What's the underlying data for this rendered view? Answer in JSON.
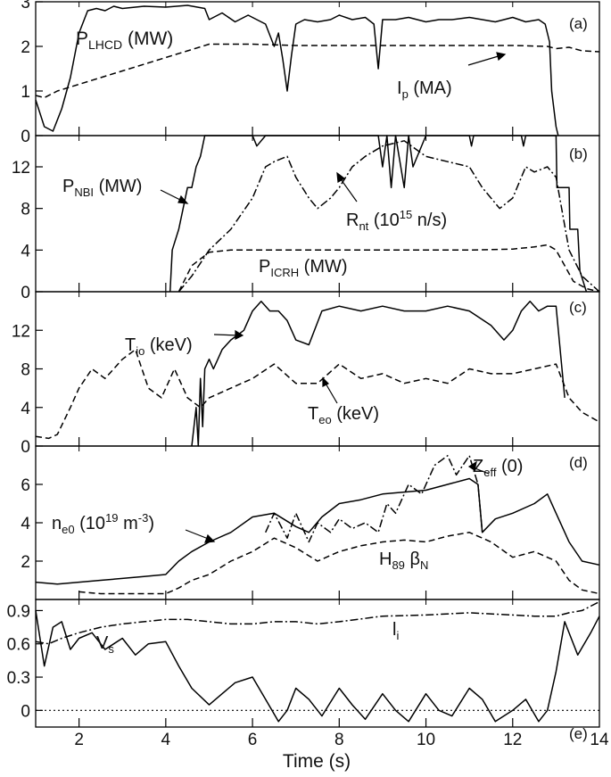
{
  "figure": {
    "xlabel": "Time (s)",
    "x_ticks": [
      "2",
      "4",
      "6",
      "8",
      "10",
      "12",
      "14"
    ]
  },
  "chart_data": [
    {
      "panel": "(a)",
      "type": "line",
      "xlim": [
        1,
        14
      ],
      "ylim": [
        0,
        3
      ],
      "yticks": [
        "0",
        "1",
        "2",
        "3"
      ],
      "series": [
        {
          "label_main": "P",
          "label_sub": "LHCD",
          "label_rest": " (MW)",
          "style": "solid",
          "x": [
            1.0,
            1.2,
            1.4,
            1.6,
            1.8,
            2.0,
            2.2,
            2.4,
            2.6,
            2.8,
            3.0,
            3.5,
            4.0,
            4.5,
            4.9,
            5.0,
            5.3,
            5.6,
            5.9,
            6.1,
            6.3,
            6.5,
            6.6,
            6.7,
            6.8,
            6.9,
            7.0,
            7.2,
            7.5,
            7.8,
            8.0,
            8.3,
            8.6,
            8.8,
            8.9,
            9.0,
            9.1,
            9.3,
            9.6,
            10.0,
            10.3,
            10.6,
            11.0,
            11.3,
            11.6,
            12.0,
            12.3,
            12.6,
            12.75,
            12.85,
            12.9,
            13.0,
            13.05
          ],
          "y": [
            0.8,
            0.2,
            0.1,
            0.6,
            1.3,
            2.3,
            2.8,
            2.85,
            2.8,
            2.9,
            2.85,
            2.9,
            2.88,
            2.92,
            2.85,
            2.6,
            2.75,
            2.55,
            2.7,
            2.6,
            2.5,
            2.0,
            2.3,
            1.7,
            1.0,
            1.8,
            2.5,
            2.6,
            2.55,
            2.6,
            2.7,
            2.6,
            2.65,
            2.5,
            1.5,
            2.6,
            2.6,
            2.6,
            2.65,
            2.55,
            2.6,
            2.6,
            2.65,
            2.6,
            2.55,
            2.65,
            2.55,
            2.6,
            2.5,
            2.1,
            1.0,
            0.2,
            0.0
          ]
        },
        {
          "label_main": "I",
          "label_sub": "p",
          "label_rest": " (MA)",
          "style": "dashed",
          "x": [
            1.0,
            1.2,
            1.5,
            2.0,
            2.5,
            3.0,
            3.5,
            4.0,
            4.5,
            5.0,
            5.5,
            6.0,
            7.0,
            8.0,
            9.0,
            10.0,
            11.0,
            12.0,
            12.8,
            13.0,
            13.3,
            13.6,
            14.0
          ],
          "y": [
            0.9,
            0.85,
            1.0,
            1.15,
            1.3,
            1.45,
            1.6,
            1.75,
            1.9,
            2.05,
            2.05,
            2.05,
            2.02,
            2.02,
            2.02,
            2.02,
            2.02,
            2.02,
            2.0,
            1.95,
            1.98,
            1.9,
            1.88
          ]
        }
      ]
    },
    {
      "panel": "(b)",
      "type": "line",
      "xlim": [
        1,
        14
      ],
      "ylim": [
        0,
        15
      ],
      "yticks": [
        "0",
        "4",
        "8",
        "12"
      ],
      "series": [
        {
          "label_main": "P",
          "label_sub": "NBI",
          "label_rest": " (MW)",
          "style": "solid",
          "x": [
            4.1,
            4.15,
            4.3,
            4.4,
            4.5,
            4.6,
            4.7,
            4.8,
            4.9,
            5.0,
            5.5,
            6.0,
            6.1,
            6.3,
            6.5,
            7.0,
            8.0,
            8.9,
            9.0,
            9.1,
            9.2,
            9.3,
            9.5,
            9.6,
            9.7,
            10.0,
            11.0,
            11.05,
            11.1,
            12.0,
            12.2,
            12.25,
            12.3,
            13.0,
            13.02,
            13.3,
            13.32,
            13.5,
            13.55,
            13.7
          ],
          "y": [
            0,
            4,
            6,
            8,
            10,
            10,
            12,
            13,
            15,
            15,
            15,
            15,
            14,
            15,
            15,
            15,
            15,
            15,
            12,
            15,
            10,
            15,
            10,
            15,
            12,
            15,
            15,
            14,
            15,
            15,
            15,
            14,
            15,
            15,
            10,
            10,
            6,
            6,
            2,
            0
          ]
        },
        {
          "label_main": "R",
          "label_sub": "nt",
          "label_rest": " (10^15 n/s)",
          "style": "dashdot",
          "x": [
            4.3,
            4.6,
            5.0,
            5.5,
            6.0,
            6.3,
            6.5,
            6.8,
            7.0,
            7.3,
            7.5,
            7.8,
            8.0,
            8.3,
            8.6,
            9.0,
            9.5,
            10.0,
            10.5,
            11.0,
            11.3,
            11.7,
            12.0,
            12.3,
            12.5,
            12.8,
            13.0,
            13.3,
            13.6,
            14.0
          ],
          "y": [
            0,
            1.5,
            4,
            6,
            9,
            12,
            12.5,
            13,
            11,
            9,
            8,
            9,
            10,
            12,
            13,
            14,
            14.5,
            13,
            12.5,
            12,
            10,
            8,
            9,
            12,
            11.5,
            12,
            11,
            4,
            1.5,
            0
          ]
        },
        {
          "label_main": "P",
          "label_sub": "ICRH",
          "label_rest": " (MW)",
          "style": "dashed",
          "x": [
            4.3,
            4.6,
            5.0,
            5.5,
            6.0,
            7.0,
            8.0,
            9.0,
            10.0,
            11.0,
            12.0,
            12.5,
            12.8,
            13.0,
            13.2,
            13.4,
            13.7,
            14.0
          ],
          "y": [
            0,
            2.5,
            3.8,
            4.0,
            4.0,
            4.0,
            4.0,
            4.0,
            4.0,
            4.0,
            4.1,
            4.3,
            4.5,
            4.0,
            2.5,
            1.0,
            0.3,
            0
          ]
        }
      ]
    },
    {
      "panel": "(c)",
      "type": "line",
      "xlim": [
        1,
        14
      ],
      "ylim": [
        0,
        16
      ],
      "yticks": [
        "0",
        "4",
        "8",
        "12"
      ],
      "series": [
        {
          "label_main": "T",
          "label_sub": "io",
          "label_rest": " (keV)",
          "style": "solid",
          "x": [
            4.6,
            4.7,
            4.75,
            4.8,
            4.85,
            4.9,
            5.0,
            5.1,
            5.2,
            5.3,
            5.5,
            5.8,
            6.0,
            6.2,
            6.4,
            6.6,
            6.8,
            7.0,
            7.3,
            7.6,
            8.0,
            8.5,
            9.0,
            9.5,
            10.0,
            10.5,
            11.0,
            11.5,
            11.8,
            12.0,
            12.2,
            12.4,
            12.6,
            12.8,
            13.0,
            13.2
          ],
          "y": [
            0,
            4,
            0,
            7,
            2,
            8,
            9,
            8,
            9,
            10,
            11,
            12,
            14,
            15,
            14,
            14,
            13,
            11,
            10.5,
            14,
            14.5,
            14,
            14.5,
            14,
            14,
            14.5,
            14,
            12.5,
            11,
            12,
            14,
            15,
            14,
            14.5,
            14.5,
            5
          ]
        },
        {
          "label_main": "T",
          "label_sub": "eo",
          "label_rest": " (keV)",
          "style": "dashed",
          "x": [
            1.0,
            1.3,
            1.5,
            1.8,
            2.0,
            2.3,
            2.6,
            3.0,
            3.3,
            3.6,
            3.9,
            4.2,
            4.5,
            4.8,
            5.0,
            5.5,
            6.0,
            6.5,
            7.0,
            7.5,
            8.0,
            8.5,
            9.0,
            9.5,
            10.0,
            10.5,
            11.0,
            11.5,
            12.0,
            12.5,
            13.0,
            13.3,
            13.6,
            14.0
          ],
          "y": [
            1,
            0.8,
            1.2,
            4,
            6,
            8,
            7,
            9,
            10,
            6,
            5,
            8,
            5,
            4,
            5,
            6,
            7,
            8.5,
            6.5,
            6.5,
            8.5,
            7,
            7.5,
            6.5,
            7,
            6.5,
            8,
            7.5,
            7.5,
            8,
            8.5,
            5,
            3.5,
            2.5
          ]
        }
      ]
    },
    {
      "panel": "(d)",
      "type": "line",
      "xlim": [
        1,
        14
      ],
      "ylim": [
        0,
        8
      ],
      "yticks": [
        "2",
        "4",
        "6"
      ],
      "series": [
        {
          "label_main": "n",
          "label_sub": "e0",
          "label_rest": " (10^19 m^-3)",
          "style": "solid",
          "x": [
            1.0,
            1.5,
            2.0,
            2.5,
            3.0,
            3.5,
            4.0,
            4.3,
            4.6,
            5.0,
            5.5,
            6.0,
            6.5,
            7.0,
            7.3,
            7.6,
            8.0,
            8.5,
            9.0,
            9.5,
            10.0,
            10.5,
            11.0,
            11.2,
            11.3,
            11.6,
            12.0,
            12.5,
            12.8,
            13.0,
            13.3,
            13.6,
            14.0
          ],
          "y": [
            0.9,
            0.8,
            0.9,
            1.0,
            1.1,
            1.2,
            1.3,
            2.0,
            2.5,
            3.0,
            3.5,
            4.3,
            4.5,
            3.8,
            3.5,
            4.3,
            5.0,
            5.2,
            5.5,
            5.6,
            5.7,
            6.0,
            6.3,
            6.0,
            3.5,
            4.2,
            4.5,
            5.0,
            5.5,
            4.5,
            3.0,
            2.0,
            1.8
          ]
        },
        {
          "label_main": "Z",
          "label_sub": "eff",
          "label_rest": " (0)",
          "style": "dashdot",
          "x": [
            6.3,
            6.5,
            6.8,
            7.0,
            7.3,
            7.5,
            7.8,
            8.0,
            8.3,
            8.6,
            8.9,
            9.1,
            9.3,
            9.6,
            9.9,
            10.2,
            10.5,
            10.7,
            11.0,
            11.2,
            11.3
          ],
          "y": [
            3.5,
            4.5,
            3.2,
            4.5,
            3.0,
            4.0,
            3.5,
            4.2,
            3.7,
            4.0,
            3.5,
            5.0,
            4.5,
            6.0,
            5.5,
            7.0,
            7.5,
            6.5,
            7.5,
            6.0,
            3.5
          ]
        },
        {
          "label_main": "H",
          "label_sub": "89",
          "label_rest": " βN",
          "style": "dashed",
          "x": [
            2.0,
            2.5,
            3.0,
            3.5,
            4.0,
            4.3,
            4.6,
            5.0,
            5.5,
            6.0,
            6.5,
            7.0,
            7.5,
            8.0,
            8.5,
            9.0,
            9.5,
            10.0,
            10.5,
            11.0,
            11.5,
            12.0,
            12.5,
            13.0,
            13.3,
            13.6,
            14.0
          ],
          "y": [
            0.4,
            0.3,
            0.3,
            0.3,
            0.3,
            0.6,
            1.0,
            1.3,
            2.0,
            2.5,
            3.2,
            2.7,
            2.0,
            2.5,
            2.8,
            3.0,
            3.1,
            3.0,
            3.3,
            3.5,
            3.0,
            2.2,
            2.5,
            2.0,
            1.0,
            0.5,
            0.3
          ]
        }
      ]
    },
    {
      "panel": "(e)",
      "type": "line",
      "xlim": [
        1,
        14
      ],
      "ylim": [
        -0.15,
        1.0
      ],
      "yticks": [
        "0",
        "0.3",
        "0.6",
        "0.9"
      ],
      "series": [
        {
          "label_main": "l",
          "label_sub": "i",
          "label_rest": "",
          "style": "dashdot",
          "x": [
            1.0,
            1.3,
            1.6,
            2.0,
            2.5,
            3.0,
            3.5,
            4.0,
            4.5,
            5.0,
            5.5,
            6.0,
            6.5,
            7.0,
            7.5,
            8.0,
            9.0,
            10.0,
            11.0,
            12.0,
            12.5,
            13.0,
            13.3,
            13.6,
            14.0
          ],
          "y": [
            0.62,
            0.6,
            0.65,
            0.7,
            0.75,
            0.78,
            0.8,
            0.82,
            0.82,
            0.8,
            0.78,
            0.78,
            0.8,
            0.8,
            0.78,
            0.8,
            0.85,
            0.86,
            0.88,
            0.86,
            0.85,
            0.85,
            0.88,
            0.9,
            0.98
          ]
        },
        {
          "label_main": "V",
          "label_sub": "s",
          "label_rest": "",
          "style": "solid",
          "x": [
            1.0,
            1.2,
            1.4,
            1.6,
            1.8,
            2.0,
            2.3,
            2.6,
            3.0,
            3.3,
            3.6,
            4.0,
            4.3,
            4.6,
            5.0,
            5.3,
            5.6,
            6.0,
            6.3,
            6.6,
            6.8,
            7.0,
            7.3,
            7.6,
            8.0,
            8.3,
            8.6,
            9.0,
            9.3,
            9.6,
            10.0,
            10.3,
            10.6,
            11.0,
            11.3,
            11.6,
            12.0,
            12.3,
            12.6,
            12.8,
            13.0,
            13.2,
            13.5,
            13.8,
            14.0
          ],
          "y": [
            0.9,
            0.4,
            0.75,
            0.8,
            0.55,
            0.65,
            0.7,
            0.55,
            0.65,
            0.5,
            0.6,
            0.62,
            0.4,
            0.2,
            0.05,
            0.15,
            0.25,
            0.3,
            0.1,
            -0.1,
            0.0,
            0.2,
            0.1,
            -0.05,
            0.2,
            0.05,
            -0.08,
            0.15,
            0.0,
            -0.1,
            0.15,
            0.0,
            -0.05,
            0.2,
            0.1,
            -0.1,
            0.0,
            0.1,
            -0.1,
            0.0,
            0.35,
            0.8,
            0.5,
            0.7,
            0.85
          ]
        },
        {
          "label_main": "",
          "label_sub": "",
          "label_rest": "",
          "style": "dotted",
          "x": [
            1.0,
            14.0
          ],
          "y": [
            0.0,
            0.0
          ]
        }
      ]
    }
  ],
  "labels": {
    "a_panel": "(a)",
    "b_panel": "(b)",
    "c_panel": "(c)",
    "d_panel": "(d)",
    "e_panel": "(e)",
    "a_s0_main": "P",
    "a_s0_sub": "LHCD",
    "a_s0_rest": " (MW)",
    "a_s1_main": "I",
    "a_s1_sub": "p",
    "a_s1_rest": " (MA)",
    "b_s0_main": "P",
    "b_s0_sub": "NBI",
    "b_s0_rest": " (MW)",
    "b_s1_main": "R",
    "b_s1_sub": "nt",
    "b_s1_rest": " (10",
    "b_s1_sup": "15",
    "b_s1_rest2": " n/s)",
    "b_s2_main": "P",
    "b_s2_sub": "ICRH",
    "b_s2_rest": " (MW)",
    "c_s0_main": "T",
    "c_s0_sub": "io",
    "c_s0_rest": " (keV)",
    "c_s1_main": "T",
    "c_s1_sub": "eo",
    "c_s1_rest": " (keV)",
    "d_s0_main": "n",
    "d_s0_sub": "e0",
    "d_s0_rest": " (10",
    "d_s0_sup": "19",
    "d_s0_rest2": " m",
    "d_s0_sup2": "-3",
    "d_s0_rest3": ")",
    "d_s1_main": "Z",
    "d_s1_sub": "eff",
    "d_s1_rest": " (0)",
    "d_s2_main": "H",
    "d_s2_sub": "89",
    "d_s2_rest": " β",
    "d_s2_sub2": "N",
    "e_s0_main": "l",
    "e_s0_sub": "i",
    "e_s1_main": "V",
    "e_s1_sub": "s"
  }
}
